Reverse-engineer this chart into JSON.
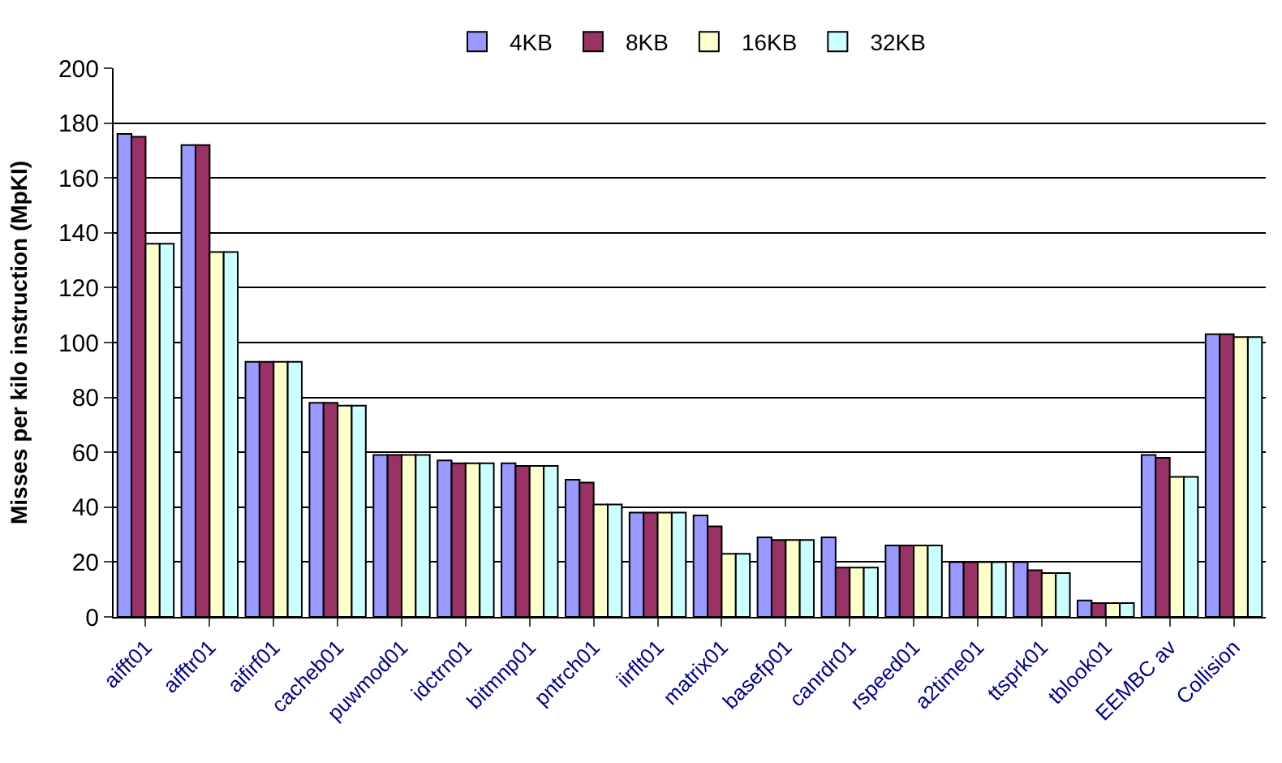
{
  "chart_data": {
    "type": "bar",
    "ylabel": "Misses per kilo instruction (MpKI)",
    "categories": [
      "aifft01",
      "aifftr01",
      "aifirf01",
      "cacheb01",
      "puwmod01",
      "idctrn01",
      "bitmnp01",
      "pntrch01",
      "iirflt01",
      "matrix01",
      "basefp01",
      "canrdr01",
      "rspeed01",
      "a2time01",
      "ttsprk01",
      "tblook01",
      "EEMBC av",
      "Collision"
    ],
    "series": [
      {
        "name": "4KB",
        "color": "#9999ff",
        "values": [
          176,
          172,
          93,
          78,
          59,
          57,
          56,
          50,
          38,
          37,
          29,
          29,
          26,
          20,
          20,
          6,
          59,
          103
        ]
      },
      {
        "name": "8KB",
        "color": "#993366",
        "values": [
          175,
          172,
          93,
          78,
          59,
          56,
          55,
          49,
          38,
          33,
          28,
          18,
          26,
          20,
          17,
          5,
          58,
          103
        ]
      },
      {
        "name": "16KB",
        "color": "#ffffcc",
        "values": [
          136,
          133,
          93,
          77,
          59,
          56,
          55,
          41,
          38,
          23,
          28,
          18,
          26,
          20,
          16,
          5,
          51,
          102
        ]
      },
      {
        "name": "32KB",
        "color": "#ccffff",
        "values": [
          136,
          133,
          93,
          77,
          59,
          56,
          55,
          41,
          38,
          23,
          28,
          18,
          26,
          20,
          16,
          5,
          51,
          102
        ]
      }
    ],
    "ylim": [
      0,
      200
    ],
    "yticks": [
      0,
      20,
      40,
      60,
      80,
      100,
      120,
      140,
      160,
      180,
      200
    ],
    "grid": "y",
    "legend": "top"
  }
}
